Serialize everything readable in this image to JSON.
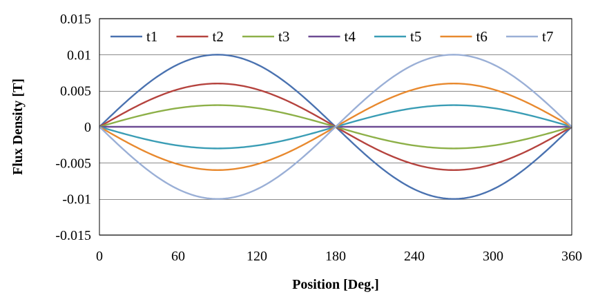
{
  "chart_data": {
    "type": "line",
    "title": "",
    "xlabel": "Position [Deg.]",
    "ylabel": "Flux Density [T]",
    "xlim": [
      0,
      360
    ],
    "ylim": [
      -0.015,
      0.015
    ],
    "xticks": [
      0,
      60,
      120,
      180,
      240,
      300,
      360
    ],
    "xtick_labels": [
      "0",
      "60",
      "120",
      "180",
      "240",
      "300",
      "360"
    ],
    "yticks": [
      -0.015,
      -0.01,
      -0.005,
      0,
      0.005,
      0.01,
      0.015
    ],
    "ytick_labels": [
      "-0.015",
      "-0.01",
      "-0.005",
      "0",
      "0.005",
      "0.01",
      "0.015"
    ],
    "grid": "horizontal",
    "legend_position": "top",
    "x": [
      0,
      15,
      30,
      45,
      60,
      75,
      90,
      105,
      120,
      135,
      150,
      165,
      180,
      195,
      210,
      225,
      240,
      255,
      270,
      285,
      300,
      315,
      330,
      345,
      360
    ],
    "series": [
      {
        "name": "t1",
        "color": "#4A72B0",
        "amplitude": 0.01,
        "values": [
          0,
          0.002588,
          0.005,
          0.007071,
          0.00866,
          0.009659,
          0.01,
          0.009659,
          0.00866,
          0.007071,
          0.005,
          0.002588,
          0,
          -0.002588,
          -0.005,
          -0.007071,
          -0.00866,
          -0.009659,
          -0.01,
          -0.009659,
          -0.00866,
          -0.007071,
          -0.005,
          -0.002588,
          0
        ]
      },
      {
        "name": "t2",
        "color": "#B5433E",
        "amplitude": 0.006,
        "values": [
          0,
          0.001553,
          0.003,
          0.004243,
          0.005196,
          0.005796,
          0.006,
          0.005796,
          0.005196,
          0.004243,
          0.003,
          0.001553,
          0,
          -0.001553,
          -0.003,
          -0.004243,
          -0.005196,
          -0.005796,
          -0.006,
          -0.005796,
          -0.005196,
          -0.004243,
          -0.003,
          -0.001553,
          0
        ]
      },
      {
        "name": "t3",
        "color": "#8DB048",
        "amplitude": 0.003,
        "values": [
          0,
          0.000776,
          0.0015,
          0.002121,
          0.002598,
          0.002898,
          0.003,
          0.002898,
          0.002598,
          0.002121,
          0.0015,
          0.000776,
          0,
          -0.000776,
          -0.0015,
          -0.002121,
          -0.002598,
          -0.002898,
          -0.003,
          -0.002898,
          -0.002598,
          -0.002121,
          -0.0015,
          -0.000776,
          0
        ]
      },
      {
        "name": "t4",
        "color": "#6D4B93",
        "amplitude": 0,
        "values": [
          0,
          0,
          0,
          0,
          0,
          0,
          0,
          0,
          0,
          0,
          0,
          0,
          0,
          0,
          0,
          0,
          0,
          0,
          0,
          0,
          0,
          0,
          0,
          0,
          0
        ]
      },
      {
        "name": "t5",
        "color": "#3A9DB5",
        "amplitude": -0.003,
        "values": [
          0,
          -0.000776,
          -0.0015,
          -0.002121,
          -0.002598,
          -0.002898,
          -0.003,
          -0.002898,
          -0.002598,
          -0.002121,
          -0.0015,
          -0.000776,
          0,
          0.000776,
          0.0015,
          0.002121,
          0.002598,
          0.002898,
          0.003,
          0.002898,
          0.002598,
          0.002121,
          0.0015,
          0.000776,
          0
        ]
      },
      {
        "name": "t6",
        "color": "#E8892E",
        "amplitude": -0.006,
        "values": [
          0,
          -0.001553,
          -0.003,
          -0.004243,
          -0.005196,
          -0.005796,
          -0.006,
          -0.005796,
          -0.005196,
          -0.004243,
          -0.003,
          -0.001553,
          0,
          0.001553,
          0.003,
          0.004243,
          0.005196,
          0.005796,
          0.006,
          0.005796,
          0.005196,
          0.004243,
          0.003,
          0.001553,
          0
        ]
      },
      {
        "name": "t7",
        "color": "#9AAFD6",
        "amplitude": -0.01,
        "values": [
          0,
          -0.002588,
          -0.005,
          -0.007071,
          -0.00866,
          -0.009659,
          -0.01,
          -0.009659,
          -0.00866,
          -0.007071,
          -0.005,
          -0.002588,
          0,
          0.002588,
          0.005,
          0.007071,
          0.00866,
          0.009659,
          0.01,
          0.009659,
          0.00866,
          0.007071,
          0.005,
          0.002588,
          0
        ]
      }
    ]
  }
}
